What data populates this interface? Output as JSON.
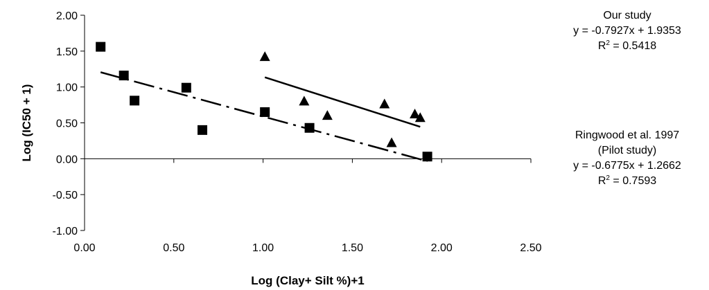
{
  "chart_data": {
    "type": "scatter",
    "xlabel": "Log (Clay+ Silt %)+1",
    "ylabel": "Log (IC50 + 1)",
    "xlim": [
      0,
      2.5
    ],
    "ylim": [
      -1,
      2
    ],
    "x_ticks": [
      "0.00",
      "0.50",
      "1.00",
      "1.50",
      "2.00",
      "2.50"
    ],
    "y_ticks": [
      "2.00",
      "1.50",
      "1.00",
      "0.50",
      "0.00",
      "-0.50",
      "-1.00"
    ],
    "grid": false,
    "series": [
      {
        "marker": "square",
        "line_style": "dash-dot",
        "points": [
          {
            "x": 0.09,
            "y": 1.56
          },
          {
            "x": 0.22,
            "y": 1.16
          },
          {
            "x": 0.28,
            "y": 0.81
          },
          {
            "x": 0.57,
            "y": 0.99
          },
          {
            "x": 0.66,
            "y": 0.4
          },
          {
            "x": 1.01,
            "y": 0.65
          },
          {
            "x": 1.26,
            "y": 0.43
          },
          {
            "x": 1.92,
            "y": 0.03
          }
        ],
        "trendline": {
          "slope": -0.6775,
          "intercept": 1.2662,
          "x_range": [
            0.09,
            1.92
          ]
        }
      },
      {
        "marker": "triangle",
        "line_style": "solid",
        "points": [
          {
            "x": 1.01,
            "y": 1.42
          },
          {
            "x": 1.23,
            "y": 0.8
          },
          {
            "x": 1.36,
            "y": 0.6
          },
          {
            "x": 1.68,
            "y": 0.76
          },
          {
            "x": 1.72,
            "y": 0.22
          },
          {
            "x": 1.85,
            "y": 0.62
          },
          {
            "x": 1.88,
            "y": 0.57
          }
        ],
        "trendline": {
          "slope": -0.7927,
          "intercept": 1.9353,
          "x_range": [
            1.01,
            1.88
          ]
        }
      }
    ],
    "annotations": [
      {
        "lines": [
          "Our study",
          "y = -0.7927x + 1.9353"
        ],
        "r2_prefix": "R",
        "r2_sup": "2",
        "r2_value": " = 0.5418"
      },
      {
        "lines": [
          "Ringwood et al. 1997",
          "(Pilot study)",
          "y = -0.6775x + 1.2662"
        ],
        "r2_prefix": "R",
        "r2_sup": "2",
        "r2_value": " = 0.7593"
      }
    ]
  }
}
